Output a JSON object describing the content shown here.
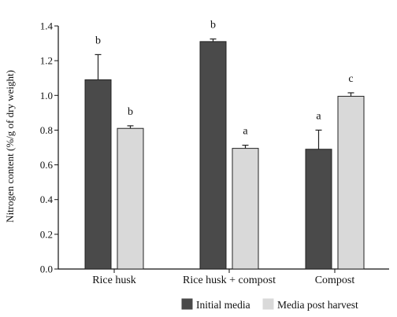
{
  "chart_data": {
    "type": "bar",
    "title": "",
    "xlabel": "",
    "ylabel": "Nitrogen content (%/g of dry weight)",
    "ylim": [
      0,
      1.4
    ],
    "yticks": [
      "0.0",
      "0.2",
      "0.4",
      "0.6",
      "0.8",
      "1.0",
      "1.2",
      "1.4"
    ],
    "grid": false,
    "legend_position": "bottom",
    "categories": [
      "Rice husk",
      "Rice husk + compost",
      "Compost"
    ],
    "series": [
      {
        "name": "Initial media",
        "color": "#4a4a4a",
        "values": [
          1.09,
          1.31,
          0.69
        ],
        "errors": [
          0.145,
          0.015,
          0.11
        ],
        "letters": [
          "b",
          "b",
          "a"
        ]
      },
      {
        "name": "Media post harvest",
        "color": "#d9d9d9",
        "values": [
          0.81,
          0.695,
          0.995
        ],
        "errors": [
          0.015,
          0.018,
          0.02
        ],
        "letters": [
          "b",
          "a",
          "c"
        ]
      }
    ]
  }
}
